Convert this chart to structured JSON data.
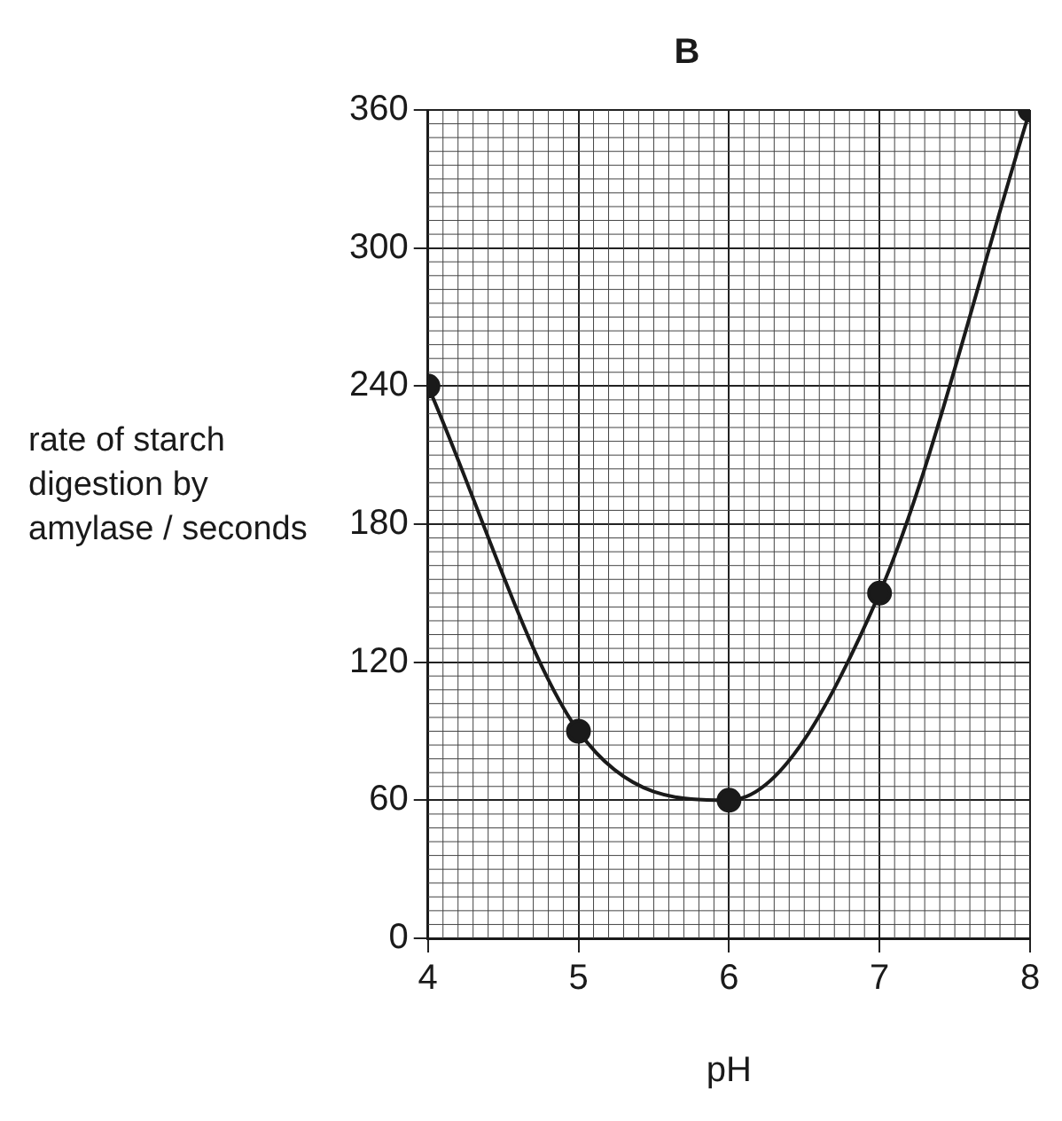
{
  "chart_data": {
    "type": "line",
    "title": "B",
    "xlabel": "pH",
    "ylabel": "rate of starch digestion by amylase / seconds",
    "x": [
      4,
      5,
      6,
      7,
      8
    ],
    "series": [
      {
        "color": "#1a1a1a",
        "values": [
          240,
          90,
          60,
          150,
          360
        ]
      }
    ],
    "xlim": [
      4,
      8
    ],
    "xticks": [
      4,
      5,
      6,
      7,
      8
    ],
    "ylim": [
      0,
      360
    ],
    "yticks": [
      0,
      60,
      120,
      180,
      240,
      300,
      360
    ],
    "grid": true,
    "legend": false,
    "marker": "circle",
    "line_style": "solid"
  }
}
